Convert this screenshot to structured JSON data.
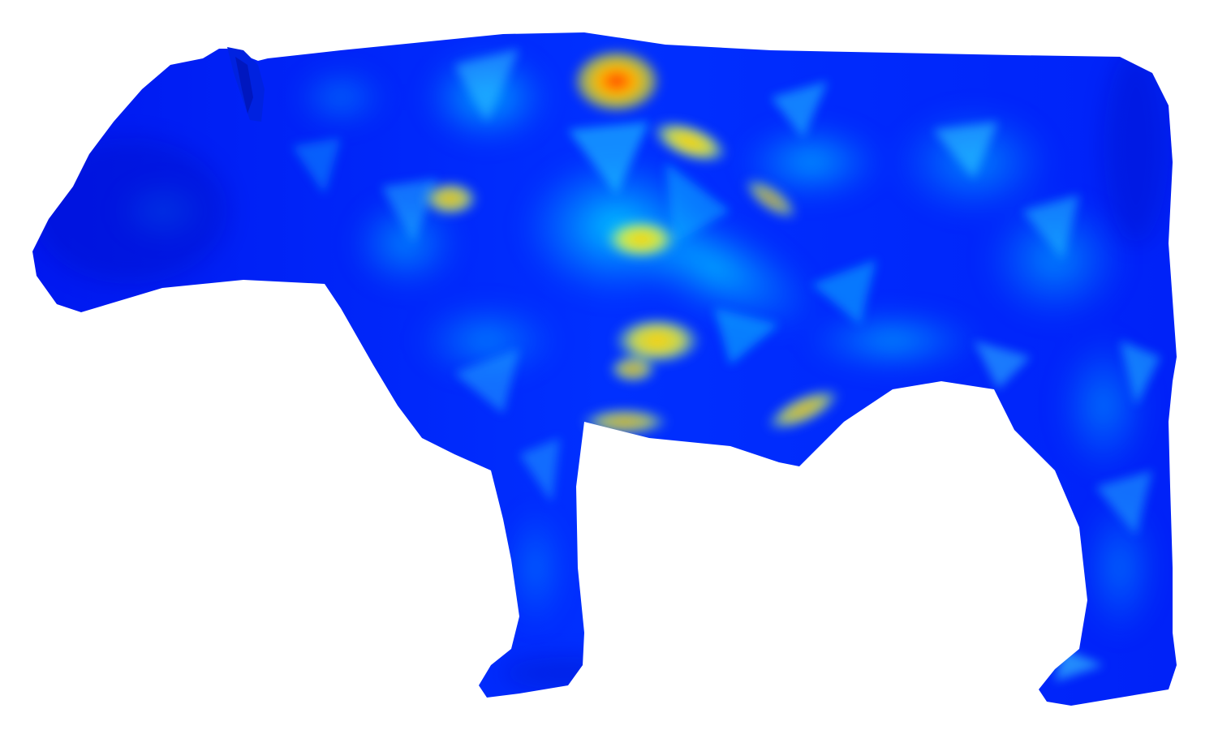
{
  "scene": {
    "subject": "cow-mesh",
    "background_color": "#ffffff",
    "colormap": [
      "#0000ff",
      "#0050ff",
      "#00c8ff",
      "#ffff00",
      "#ff3c00"
    ]
  }
}
